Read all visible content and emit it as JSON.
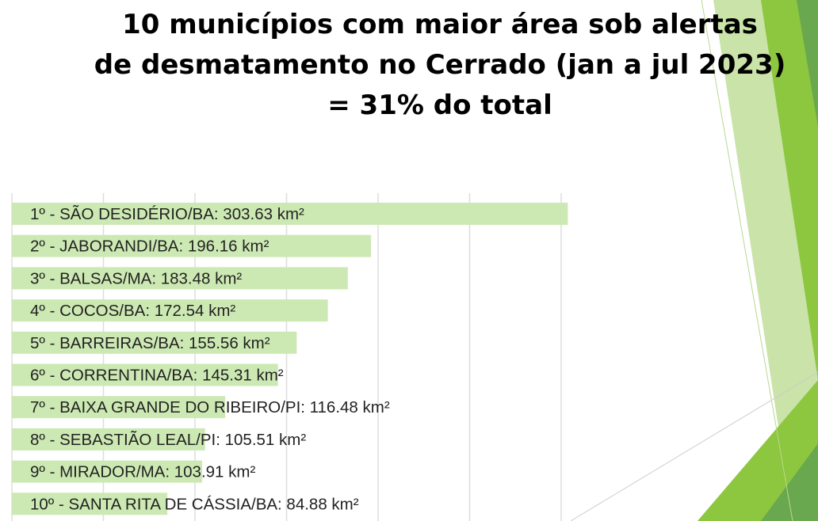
{
  "title_lines": [
    "10 municípios com maior área sob alertas",
    "de desmatamento no Cerrado (jan a jul 2023)",
    "= 31% do total"
  ],
  "colors": {
    "bar": "#cde9b3",
    "gridline": "#dddddd",
    "deco_dark": "#6aa84f",
    "deco_mid": "#8dc63f",
    "deco_light": "#c9e3a8"
  },
  "chart_data": {
    "type": "bar",
    "orientation": "horizontal",
    "title": "10 municípios com maior área sob alertas de desmatamento no Cerrado (jan a jul 2023) = 31% do total",
    "categories": [
      "SÃO DESIDÉRIO/BA",
      "JABORANDI/BA",
      "BALSAS/MA",
      "COCOS/BA",
      "BARREIRAS/BA",
      "CORRENTINA/BA",
      "BAIXA GRANDE DO RIBEIRO/PI",
      "SEBASTIÃO LEAL/PI",
      "MIRADOR/MA",
      "SANTA RITA DE CÁSSIA/BA"
    ],
    "values": [
      303.63,
      196.16,
      183.48,
      172.54,
      155.56,
      145.31,
      116.48,
      105.51,
      103.91,
      84.88
    ],
    "labels": [
      "1º - SÃO DESIDÉRIO/BA: 303.63 km²",
      "2º - JABORANDI/BA: 196.16 km²",
      "3º - BALSAS/MA: 183.48 km²",
      "4º - COCOS/BA: 172.54 km²",
      "5º - BARREIRAS/BA: 155.56 km²",
      "6º - CORRENTINA/BA: 145.31 km²",
      "7º - BAIXA GRANDE DO RIBEIRO/PI: 116.48 km²",
      "8º - SEBASTIÃO LEAL/PI: 105.51 km²",
      "9º - MIRADOR/MA: 103.91 km²",
      "10º - SANTA RITA DE CÁSSIA/BA: 84.88 km²"
    ],
    "xlim": [
      0,
      300
    ],
    "gridlines": [
      0,
      50,
      100,
      150,
      200,
      250,
      300
    ],
    "grid": true,
    "legend": "none"
  }
}
